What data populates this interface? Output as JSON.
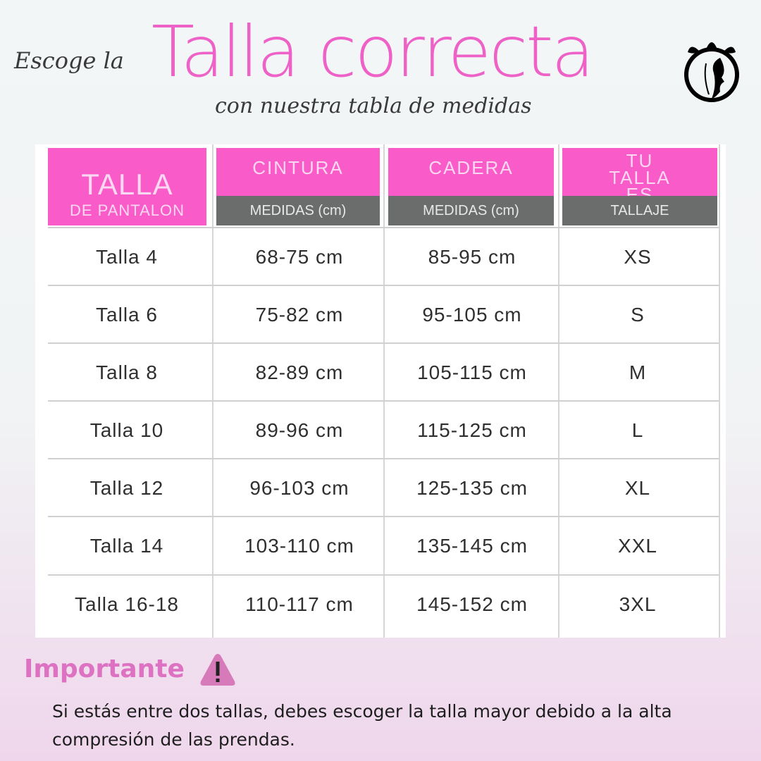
{
  "header": {
    "pre": "Escoge la",
    "title": "Talla correcta",
    "subtitle": "con nuestra tabla de medidas"
  },
  "logo": {
    "icon": "woman-profile-leaves-logo"
  },
  "table": {
    "columns": [
      {
        "title": "TALLA",
        "subtitle": "DE PANTALON"
      },
      {
        "title": "CINTURA",
        "subtitle": "MEDIDAS (cm)"
      },
      {
        "title": "CADERA",
        "subtitle": "MEDIDAS (cm)"
      },
      {
        "title": "TU TALLA ES",
        "subtitle": "TALLAJE"
      }
    ],
    "rows": [
      [
        "Talla 4",
        "68-75 cm",
        "85-95 cm",
        "XS"
      ],
      [
        "Talla 6",
        "75-82 cm",
        "95-105 cm",
        "S"
      ],
      [
        "Talla 8",
        "82-89 cm",
        "105-115 cm",
        "M"
      ],
      [
        "Talla 10",
        "89-96 cm",
        "115-125 cm",
        "L"
      ],
      [
        "Talla 12",
        "96-103 cm",
        "125-135 cm",
        "XL"
      ],
      [
        "Talla 14",
        "103-110 cm",
        "135-145 cm",
        "XXL"
      ],
      [
        "Talla 16-18",
        "110-117 cm",
        "145-152 cm",
        "3XL"
      ]
    ],
    "colors": {
      "header_pink": "#f95cc9",
      "header_gray": "#6b6c6c"
    }
  },
  "notice": {
    "title": "Importante",
    "icon": "warning-icon",
    "text": "Si estás entre dos tallas, debes escoger la talla mayor debido a la alta compresión de las prendas.",
    "accent": "#de72c2"
  }
}
